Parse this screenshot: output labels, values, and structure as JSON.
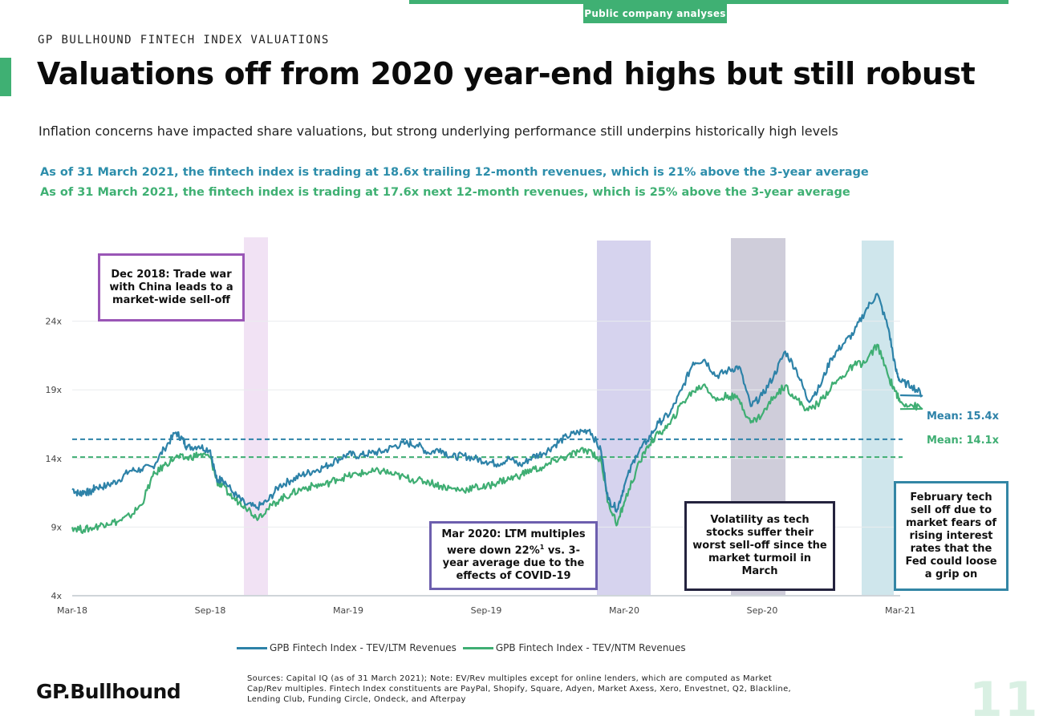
{
  "header": {
    "tag": "Public company analyses",
    "eyebrow": "GP BULLHOUND FINTECH INDEX VALUATIONS",
    "title": "Valuations off from 2020 year-end highs but still robust",
    "subtitle": "Inflation concerns have impacted share valuations, but strong underlying performance still underpins historically high levels",
    "stat_ltm": "As of 31 March 2021, the fintech index is trading at 18.6x trailing 12-month revenues, which is 21% above the 3-year average",
    "stat_ntm": "As of 31 March 2021, the fintech index is trading at 17.6x next 12-month revenues, which is 25% above the 3-year average"
  },
  "colors": {
    "ltm": "#2d82a8",
    "ntm": "#3fae73",
    "accent": "#3fb073",
    "band_dec18": "#f1e2f4",
    "band_mar20": "#d6d3ee",
    "band_sep20": "#cfcdda",
    "band_feb21": "#cfe6ec"
  },
  "callouts": {
    "dec18": "Dec 2018: Trade war with China leads to a market-wide sell-off",
    "mar20_part1": "Mar 2020: LTM multiples were down 22%",
    "mar20_sup": "1",
    "mar20_part2": " vs. 3-year average due to the effects of COVID-19",
    "sep20": "Volatility as tech stocks suffer their worst sell-off since the market turmoil in March",
    "feb21": "February tech sell off due to market fears of rising interest rates that the Fed could loose a grip on"
  },
  "chart_data": {
    "type": "line",
    "x_ticks": [
      "Mar-18",
      "Sep-18",
      "Mar-19",
      "Sep-19",
      "Mar-20",
      "Sep-20",
      "Mar-21"
    ],
    "y_ticks": [
      "4x",
      "9x",
      "14x",
      "19x",
      "24x"
    ],
    "ylim": [
      4,
      29
    ],
    "mean_ltm": 15.4,
    "mean_ntm": 14.1,
    "mean_ltm_label": "Mean: 15.4x",
    "mean_ntm_label": "Mean: 14.1x",
    "series": [
      {
        "name": "GPB Fintech Index - TEV/LTM Revenues",
        "values": [
          [
            0,
            11.8
          ],
          [
            0.3,
            11.4
          ],
          [
            0.5,
            11.6
          ],
          [
            0.8,
            11.5
          ],
          [
            1,
            11.9
          ],
          [
            1.5,
            12.0
          ],
          [
            2,
            12.4
          ],
          [
            2.5,
            13.1
          ],
          [
            3,
            13.2
          ],
          [
            3.5,
            13.4
          ],
          [
            4,
            14.7
          ],
          [
            4.5,
            15.9
          ],
          [
            4.8,
            15.4
          ],
          [
            5,
            14.8
          ],
          [
            5.5,
            14.9
          ],
          [
            6,
            14.6
          ],
          [
            6.3,
            12.3
          ],
          [
            6.5,
            12.6
          ],
          [
            7,
            11.5
          ],
          [
            7.5,
            10.7
          ],
          [
            8,
            10.4
          ],
          [
            8.5,
            10.9
          ],
          [
            9,
            12.0
          ],
          [
            9.5,
            12.4
          ],
          [
            10,
            12.8
          ],
          [
            10.5,
            13.1
          ],
          [
            11,
            13.4
          ],
          [
            11.5,
            13.9
          ],
          [
            12,
            14.3
          ],
          [
            12.5,
            14.2
          ],
          [
            13,
            14.4
          ],
          [
            13.5,
            14.5
          ],
          [
            14,
            14.9
          ],
          [
            14.5,
            15.1
          ],
          [
            15,
            15.0
          ],
          [
            15.5,
            14.4
          ],
          [
            16,
            14.7
          ],
          [
            16.5,
            14.1
          ],
          [
            17,
            14.2
          ],
          [
            17.5,
            14.0
          ],
          [
            18,
            13.8
          ],
          [
            18.5,
            13.6
          ],
          [
            19,
            14.0
          ],
          [
            19.5,
            13.5
          ],
          [
            20,
            14.1
          ],
          [
            20.5,
            14.4
          ],
          [
            21,
            15.0
          ],
          [
            21.5,
            15.6
          ],
          [
            22,
            15.9
          ],
          [
            22.5,
            16.1
          ],
          [
            23,
            14.5
          ],
          [
            23.3,
            11.0
          ],
          [
            23.7,
            10.3
          ],
          [
            24,
            12.0
          ],
          [
            24.5,
            14.2
          ],
          [
            25,
            15.3
          ],
          [
            25.5,
            16.6
          ],
          [
            26,
            17.3
          ],
          [
            26.5,
            19.0
          ],
          [
            27,
            21.0
          ],
          [
            27.5,
            21.2
          ],
          [
            28,
            20.0
          ],
          [
            28.5,
            20.4
          ],
          [
            29,
            20.7
          ],
          [
            29.5,
            17.8
          ],
          [
            30,
            18.6
          ],
          [
            30.5,
            20.0
          ],
          [
            31,
            21.8
          ],
          [
            31.5,
            20.4
          ],
          [
            32,
            18.2
          ],
          [
            32.5,
            19.2
          ],
          [
            33,
            21.3
          ],
          [
            33.5,
            22.3
          ],
          [
            34,
            23.2
          ],
          [
            34.5,
            24.8
          ],
          [
            35,
            26.0
          ],
          [
            35.5,
            23.4
          ],
          [
            35.8,
            20.5
          ],
          [
            36,
            19.6
          ],
          [
            36.5,
            19.3
          ],
          [
            37,
            18.6
          ]
        ]
      },
      {
        "name": "GPB Fintech Index - TEV/NTM Revenues",
        "values": [
          [
            0,
            9.0
          ],
          [
            0.5,
            8.8
          ],
          [
            1,
            9.0
          ],
          [
            1.5,
            9.3
          ],
          [
            2,
            9.4
          ],
          [
            2.5,
            9.8
          ],
          [
            3,
            10.6
          ],
          [
            3.5,
            12.7
          ],
          [
            4,
            13.5
          ],
          [
            4.5,
            14.1
          ],
          [
            5,
            14.0
          ],
          [
            5.5,
            14.3
          ],
          [
            6,
            14.1
          ],
          [
            6.3,
            12.3
          ],
          [
            6.5,
            12.0
          ],
          [
            7,
            11.1
          ],
          [
            7.5,
            10.6
          ],
          [
            8,
            9.7
          ],
          [
            8.5,
            10.3
          ],
          [
            9,
            11.0
          ],
          [
            9.5,
            11.4
          ],
          [
            10,
            11.8
          ],
          [
            10.5,
            12.0
          ],
          [
            11,
            12.1
          ],
          [
            11.5,
            12.5
          ],
          [
            12,
            12.7
          ],
          [
            12.5,
            12.9
          ],
          [
            13,
            13.0
          ],
          [
            13.5,
            13.1
          ],
          [
            14,
            12.8
          ],
          [
            14.5,
            12.6
          ],
          [
            15,
            12.4
          ],
          [
            15.5,
            12.3
          ],
          [
            16,
            12.0
          ],
          [
            16.5,
            11.8
          ],
          [
            17,
            11.7
          ],
          [
            17.5,
            11.9
          ],
          [
            18,
            11.9
          ],
          [
            18.5,
            12.3
          ],
          [
            19,
            12.5
          ],
          [
            19.5,
            12.8
          ],
          [
            20,
            13.2
          ],
          [
            20.5,
            13.3
          ],
          [
            21,
            13.9
          ],
          [
            21.5,
            14.1
          ],
          [
            22,
            14.5
          ],
          [
            22.5,
            14.6
          ],
          [
            23,
            13.8
          ],
          [
            23.3,
            10.8
          ],
          [
            23.7,
            9.2
          ],
          [
            24,
            10.8
          ],
          [
            24.5,
            13.0
          ],
          [
            25,
            14.9
          ],
          [
            25.5,
            15.8
          ],
          [
            26,
            16.5
          ],
          [
            26.5,
            18.0
          ],
          [
            27,
            18.9
          ],
          [
            27.5,
            19.4
          ],
          [
            28,
            18.2
          ],
          [
            28.5,
            18.6
          ],
          [
            29,
            18.3
          ],
          [
            29.5,
            16.6
          ],
          [
            30,
            17.2
          ],
          [
            30.5,
            18.5
          ],
          [
            31,
            19.3
          ],
          [
            31.5,
            18.3
          ],
          [
            32,
            17.5
          ],
          [
            32.5,
            18.1
          ],
          [
            33,
            19.2
          ],
          [
            33.5,
            20.0
          ],
          [
            34,
            20.8
          ],
          [
            34.5,
            21.0
          ],
          [
            35,
            22.3
          ],
          [
            35.5,
            19.9
          ],
          [
            35.8,
            18.9
          ],
          [
            36,
            18.1
          ],
          [
            36.5,
            17.9
          ],
          [
            37,
            17.6
          ]
        ]
      }
    ]
  },
  "footer": {
    "sources": "Sources: Capital IQ (as of 31 March 2021); Note: EV/Rev multiples except for online lenders, which are computed as Market Cap/Rev multiples. Fintech Index constituents are PayPal, Shopify, Square, Adyen, Market Axess, Xero, Envestnet, Q2, Blackline, Lending Club, Funding Circle, Ondeck, and Afterpay",
    "logo": "GP.Bullhound",
    "page_number": "11"
  }
}
